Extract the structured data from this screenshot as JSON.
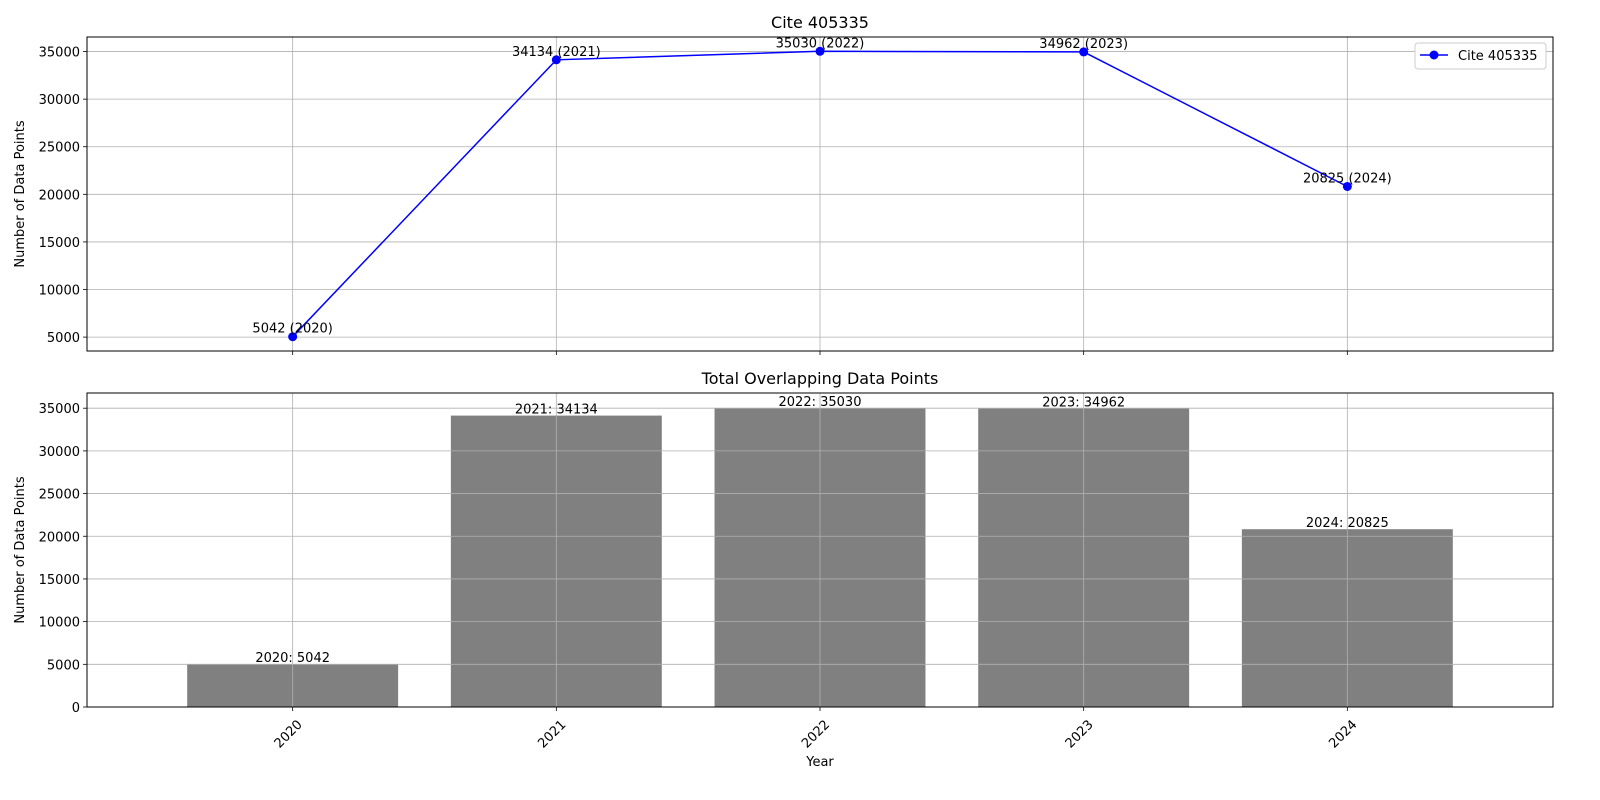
{
  "chart_data": [
    {
      "type": "line",
      "title": "Cite 405335",
      "xlabel": "",
      "ylabel": "Number of Data Points",
      "x": [
        2020,
        2021,
        2022,
        2023,
        2024
      ],
      "series": [
        {
          "name": "Cite 405335",
          "values": [
            5042,
            34134,
            35030,
            34962,
            20825
          ],
          "color": "#0000ff",
          "marker": "circle"
        }
      ],
      "point_labels": [
        "5042 (2020)",
        "34134 (2021)",
        "35030 (2022)",
        "34962 (2023)",
        "20825 (2024)"
      ],
      "yticks": [
        5000,
        10000,
        15000,
        20000,
        25000,
        30000,
        35000
      ],
      "ylim": [
        3540,
        36530
      ],
      "xlim": [
        2019.22,
        2024.78
      ],
      "grid": true,
      "legend": "top-right"
    },
    {
      "type": "bar",
      "title": "Total Overlapping Data Points",
      "xlabel": "Year",
      "ylabel": "Number of Data Points",
      "categories": [
        "2020",
        "2021",
        "2022",
        "2023",
        "2024"
      ],
      "values": [
        5042,
        34134,
        35030,
        34962,
        20825
      ],
      "bar_labels": [
        "2020: 5042",
        "2021: 34134",
        "2022: 35030",
        "2023: 34962",
        "2024: 20825"
      ],
      "yticks": [
        0,
        5000,
        10000,
        15000,
        20000,
        25000,
        30000,
        35000
      ],
      "ylim": [
        0,
        36780
      ],
      "xlim": [
        2019.22,
        2024.78
      ],
      "bar_color": "#808080",
      "grid": true,
      "xtick_rotation": 45
    }
  ]
}
